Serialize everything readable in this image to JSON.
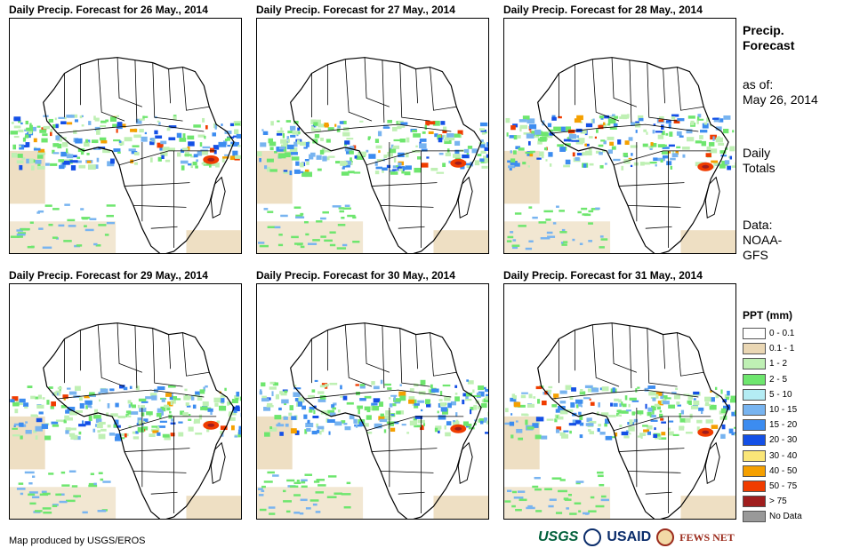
{
  "panels": [
    {
      "title": "Daily Precip. Forecast for 26 May., 2014"
    },
    {
      "title": "Daily Precip. Forecast for 27 May., 2014"
    },
    {
      "title": "Daily Precip. Forecast for 28 May., 2014"
    },
    {
      "title": "Daily Precip. Forecast for 29 May., 2014"
    },
    {
      "title": "Daily Precip. Forecast for 30 May., 2014"
    },
    {
      "title": "Daily Precip. Forecast for 31 May., 2014"
    }
  ],
  "side": {
    "heading_line1": "Precip.",
    "heading_line2": "Forecast",
    "asof_label": "as of:",
    "asof_date": "May 26, 2014",
    "totals_line1": "Daily",
    "totals_line2": "Totals",
    "data_line1": "Data:",
    "data_line2": "NOAA-",
    "data_line3": "GFS"
  },
  "legend": {
    "title": "PPT (mm)",
    "items": [
      {
        "label": "0 - 0.1",
        "color": "#ffffff"
      },
      {
        "label": "0.1 - 1",
        "color": "#ead7b4"
      },
      {
        "label": "1 - 2",
        "color": "#bff0b4"
      },
      {
        "label": "2 - 5",
        "color": "#6ee66e"
      },
      {
        "label": "5 - 10",
        "color": "#b4ecf4"
      },
      {
        "label": "10 - 15",
        "color": "#78b4f0"
      },
      {
        "label": "15 - 20",
        "color": "#3c8cf0"
      },
      {
        "label": "20 - 30",
        "color": "#1450e6"
      },
      {
        "label": "30 - 40",
        "color": "#fae678"
      },
      {
        "label": "40 - 50",
        "color": "#f5a000"
      },
      {
        "label": "50 - 75",
        "color": "#f03c00"
      },
      {
        "label": "> 75",
        "color": "#a01e1e"
      },
      {
        "label": "No Data",
        "color": "#999999"
      }
    ]
  },
  "footer": {
    "credit": "Map produced by USGS/EROS"
  },
  "logos": {
    "usgs": "USGS",
    "usaid": "USAID",
    "fews": "FEWS NET"
  }
}
